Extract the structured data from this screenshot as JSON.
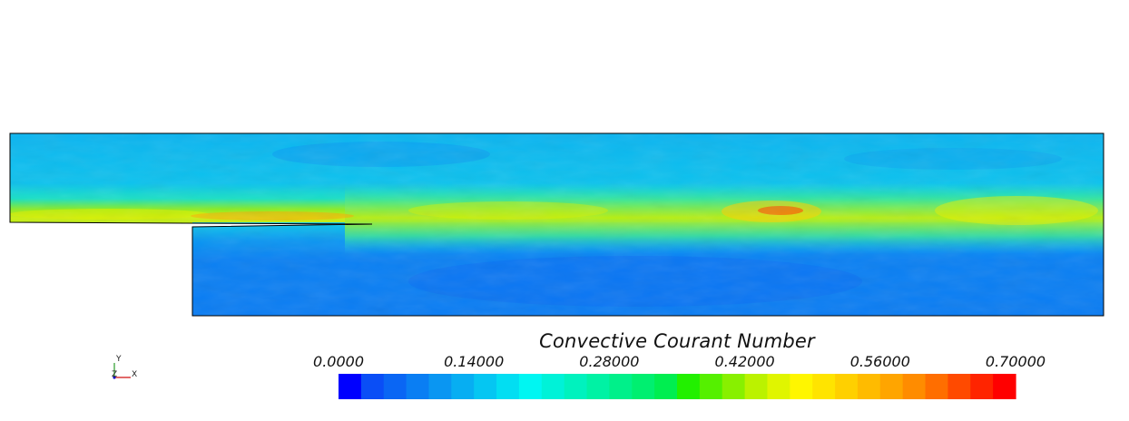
{
  "legend": {
    "title": "Convective Courant Number",
    "ticks": [
      "0.0000",
      "0.14000",
      "0.28000",
      "0.42000",
      "0.56000",
      "0.70000"
    ],
    "tick_values": [
      0.0,
      0.14,
      0.28,
      0.42,
      0.56,
      0.7
    ],
    "range": [
      0.0,
      0.7
    ],
    "colors": [
      "#0000ff",
      "#0a4ef6",
      "#0a66f4",
      "#0a7ef3",
      "#0a96f2",
      "#07aef2",
      "#05c6f2",
      "#02def2",
      "#00f6f2",
      "#00f2d8",
      "#00f2be",
      "#00f2a4",
      "#00f08a",
      "#00ef70",
      "#00ee50",
      "#22f000",
      "#55f000",
      "#88f000",
      "#bbf200",
      "#e0f500",
      "#fff600",
      "#ffe400",
      "#ffd000",
      "#ffbb00",
      "#ffa500",
      "#ff8c00",
      "#ff6e00",
      "#ff4a00",
      "#ff2400",
      "#ff0000"
    ]
  },
  "axes_triad": {
    "y_label": "Y",
    "z_label": "Z",
    "x_label": "X"
  }
}
